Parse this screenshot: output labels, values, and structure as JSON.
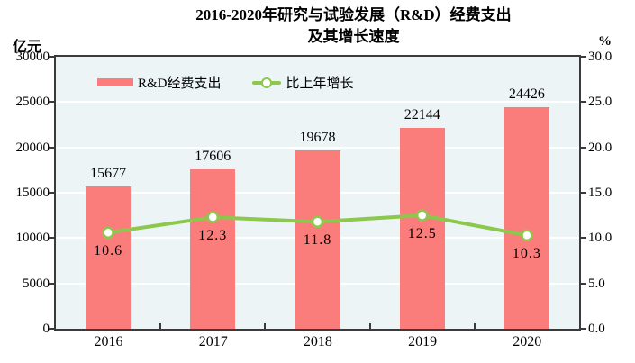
{
  "title": {
    "line1": "2016-2020年研究与试验发展（R&D）经费支出",
    "line2": "及其增长速度"
  },
  "axes": {
    "left_unit": "亿元",
    "right_unit": "%"
  },
  "chart_data": {
    "type": "bar",
    "subtype": "combo-bar-line",
    "title": "2016-2020年研究与试验发展（R&D）经费支出及其增长速度",
    "categories": [
      "2016",
      "2017",
      "2018",
      "2019",
      "2020"
    ],
    "series": [
      {
        "name": "R&D经费支出",
        "type": "bar",
        "axis": "left",
        "values": [
          15677,
          17606,
          19678,
          22144,
          24426
        ],
        "color": "#fb7d7b"
      },
      {
        "name": "比上年增长",
        "type": "line",
        "axis": "right",
        "values": [
          10.6,
          12.3,
          11.8,
          12.5,
          10.3
        ],
        "color": "#8cc84b"
      }
    ],
    "left_axis": {
      "unit": "亿元",
      "min": 0,
      "max": 30000,
      "tick_labels": [
        "30000",
        "25000",
        "20000",
        "15000",
        "10000",
        "5000",
        "0"
      ]
    },
    "right_axis": {
      "unit": "%",
      "min": 0,
      "max": 30,
      "tick_labels": [
        "30.0",
        "25.0",
        "20.0",
        "15.0",
        "10.0",
        "5.0",
        "0.0"
      ]
    },
    "grid": "horizontal",
    "legend_position": "inside-top-left"
  },
  "colors": {
    "bar": "#fb7d7b",
    "line": "#8cc84b",
    "marker_fill": "#ffffff",
    "plot_bg": "#ecf4f6",
    "grid": "#ffffff",
    "axis": "#3a3a3a",
    "text": "#000000",
    "background": "#ffffff"
  }
}
